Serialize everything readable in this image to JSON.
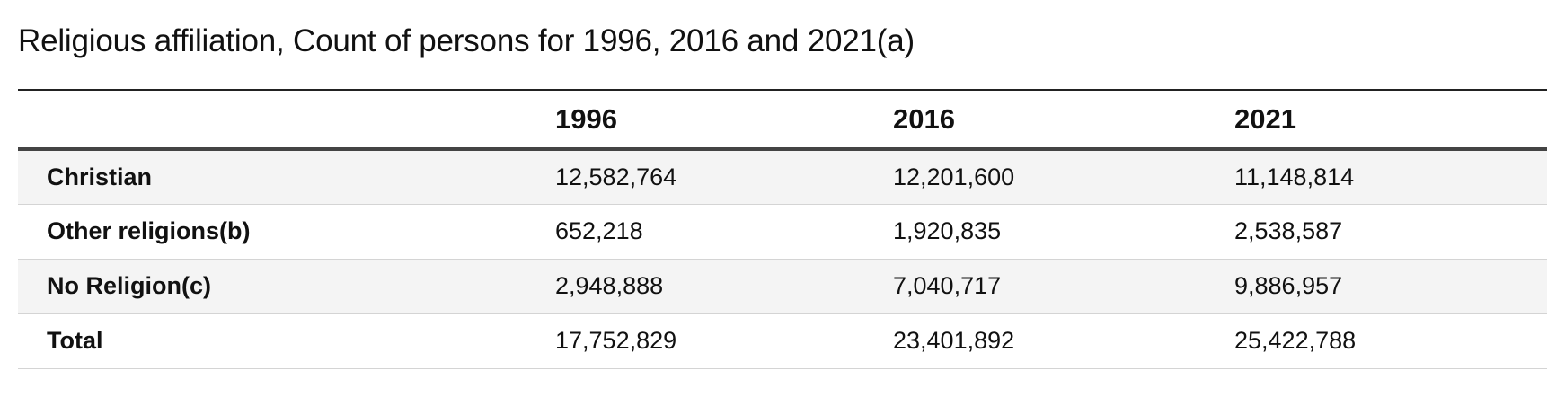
{
  "title": "Religious affiliation, Count of persons for 1996, 2016 and 2021(a)",
  "table": {
    "columns": [
      "",
      "1996",
      "2016",
      "2021"
    ],
    "rows": [
      {
        "label": "Christian",
        "values": [
          "12,582,764",
          "12,201,600",
          "11,148,814"
        ]
      },
      {
        "label": "Other religions(b)",
        "values": [
          "652,218",
          "1,920,835",
          "2,538,587"
        ]
      },
      {
        "label": "No Religion(c)",
        "values": [
          "2,948,888",
          "7,040,717",
          "9,886,957"
        ]
      },
      {
        "label": "Total",
        "values": [
          "17,752,829",
          "23,401,892",
          "25,422,788"
        ]
      }
    ]
  },
  "colors": {
    "stripe": "#f4f4f4",
    "rule": "#222222",
    "row_divider": "#d4d4d4"
  }
}
